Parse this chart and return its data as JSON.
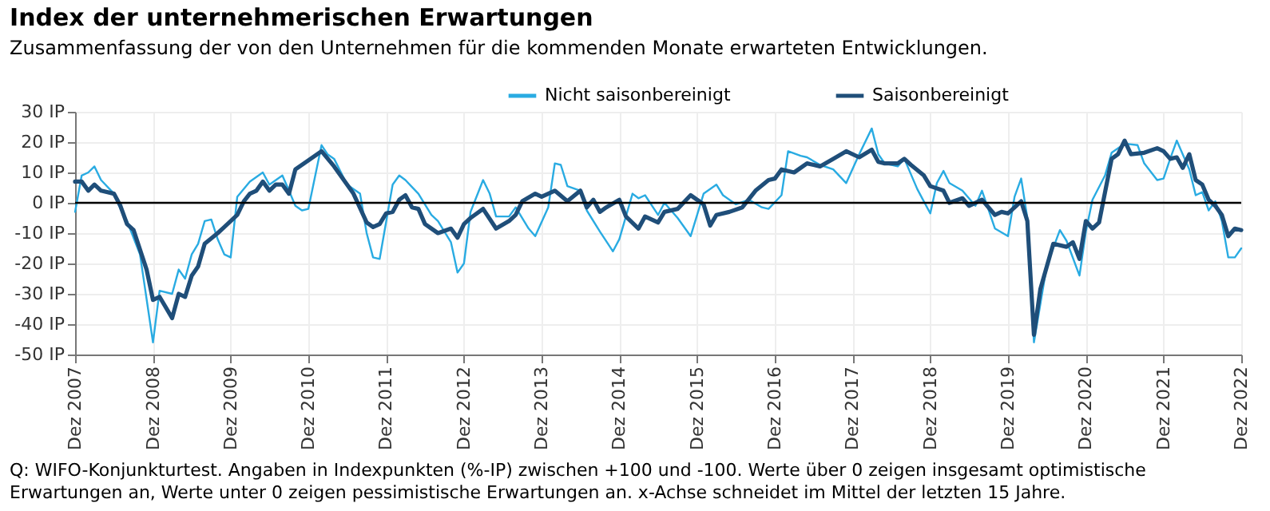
{
  "chart_data": {
    "type": "line",
    "title": "Index der unternehmerischen Erwartungen",
    "subtitle": "Zusammenfassung der von den Unternehmen für die kommenden Monate erwarteten Entwicklungen.",
    "annotations": [
      "Q: WIFO-Konjunkturtest. Angaben in Indexpunkten (%-IP) zwischen +100 und -100. Werte über 0 zeigen insgesamt optimistische Erwartungen an, Werte unter 0 zeigen pessimistische Erwartungen an. x-Achse schneidet im Mittel der letzten 15 Jahre."
    ],
    "xlim": [
      "2007-12",
      "2022-12"
    ],
    "xticks": [
      {
        "value": "2007-12",
        "label": "Dez 2007"
      },
      {
        "value": "2008-12",
        "label": "Dez 2008"
      },
      {
        "value": "2009-12",
        "label": "Dez 2009"
      },
      {
        "value": "2010-12",
        "label": "Dez 2010"
      },
      {
        "value": "2011-12",
        "label": "Dez 2011"
      },
      {
        "value": "2012-12",
        "label": "Dez 2012"
      },
      {
        "value": "2013-12",
        "label": "Dez 2013"
      },
      {
        "value": "2014-12",
        "label": "Dez 2014"
      },
      {
        "value": "2015-12",
        "label": "Dez 2015"
      },
      {
        "value": "2016-12",
        "label": "Dez 2016"
      },
      {
        "value": "2017-12",
        "label": "Dez 2017"
      },
      {
        "value": "2018-12",
        "label": "Dez 2018"
      },
      {
        "value": "2019-12",
        "label": "Dez 2019"
      },
      {
        "value": "2020-12",
        "label": "Dez 2020"
      },
      {
        "value": "2021-12",
        "label": "Dez 2021"
      },
      {
        "value": "2022-12",
        "label": "Dez 2022"
      }
    ],
    "ylim": [
      -50,
      30
    ],
    "yticks": [
      {
        "value": 30,
        "label": "30 IP"
      },
      {
        "value": 20,
        "label": "20 IP"
      },
      {
        "value": 10,
        "label": "10 IP"
      },
      {
        "value": 0,
        "label": "0 IP"
      },
      {
        "value": -10,
        "label": "-10 IP"
      },
      {
        "value": -20,
        "label": "-20 IP"
      },
      {
        "value": -30,
        "label": "-30 IP"
      },
      {
        "value": -40,
        "label": "-40 IP"
      },
      {
        "value": -50,
        "label": "-50 IP"
      }
    ],
    "grid": true,
    "legend": "top",
    "ref_lines": [
      {
        "axis": "y",
        "value": 0,
        "color": "#000000"
      }
    ],
    "series": [
      {
        "name": "Nicht saisonbereinigt",
        "color": "#29abe2",
        "x": [
          "2007-12",
          "2008-01",
          "2008-02",
          "2008-03",
          "2008-04",
          "2008-06",
          "2008-07",
          "2008-08",
          "2008-10",
          "2008-12",
          "2009-01",
          "2009-03",
          "2009-04",
          "2009-05",
          "2009-06",
          "2009-07",
          "2009-08",
          "2009-09",
          "2009-10",
          "2009-11",
          "2009-12",
          "2010-01",
          "2010-03",
          "2010-05",
          "2010-06",
          "2010-08",
          "2010-09",
          "2010-10",
          "2010-11",
          "2010-12",
          "2011-02",
          "2011-03",
          "2011-04",
          "2011-06",
          "2011-08",
          "2011-09",
          "2011-10",
          "2011-11",
          "2012-01",
          "2012-02",
          "2012-03",
          "2012-05",
          "2012-07",
          "2012-08",
          "2012-10",
          "2012-11",
          "2012-12",
          "2013-01",
          "2013-03",
          "2013-04",
          "2013-05",
          "2013-07",
          "2013-08",
          "2013-10",
          "2013-11",
          "2014-01",
          "2014-02",
          "2014-03",
          "2014-04",
          "2014-06",
          "2014-07",
          "2014-09",
          "2014-11",
          "2014-12",
          "2015-02",
          "2015-03",
          "2015-04",
          "2015-06",
          "2015-07",
          "2015-09",
          "2015-11",
          "2016-01",
          "2016-03",
          "2016-04",
          "2016-06",
          "2016-08",
          "2016-10",
          "2016-11",
          "2017-01",
          "2017-02",
          "2017-04",
          "2017-05",
          "2017-07",
          "2017-09",
          "2017-11",
          "2018-01",
          "2018-03",
          "2018-04",
          "2018-05",
          "2018-07",
          "2018-08",
          "2018-10",
          "2018-12",
          "2019-01",
          "2019-02",
          "2019-03",
          "2019-05",
          "2019-07",
          "2019-08",
          "2019-10",
          "2019-12",
          "2020-01",
          "2020-02",
          "2020-03",
          "2020-04",
          "2020-06",
          "2020-08",
          "2020-09",
          "2020-11",
          "2020-12",
          "2021-01",
          "2021-03",
          "2021-04",
          "2021-06",
          "2021-08",
          "2021-09",
          "2021-11",
          "2021-12",
          "2022-01",
          "2022-02",
          "2022-04",
          "2022-05",
          "2022-06",
          "2022-07",
          "2022-08",
          "2022-09",
          "2022-10",
          "2022-11",
          "2022-12"
        ],
        "values": [
          -3,
          9,
          10,
          12,
          7.5,
          3,
          -2,
          -6,
          -17,
          -46,
          -29,
          -30,
          -22,
          -25,
          -17,
          -13.5,
          -6,
          -5.5,
          -12,
          -17,
          -18,
          2,
          7,
          10,
          6,
          9,
          4,
          -1,
          -2.5,
          -2,
          19,
          16,
          14.5,
          6,
          3,
          -10,
          -18,
          -18.5,
          6,
          9,
          7.5,
          3,
          -4,
          -6,
          -13,
          -23,
          -20,
          -3,
          7.5,
          3,
          -4.5,
          -4.5,
          -1.5,
          -8.5,
          -11,
          -1.5,
          13,
          12.5,
          5.5,
          4,
          -2.5,
          -9.5,
          -16,
          -12,
          3,
          1.5,
          2.5,
          -4,
          0,
          -5,
          -11,
          3,
          6,
          2.5,
          -0.5,
          1,
          -1.5,
          -2,
          2.5,
          17,
          15.5,
          15,
          12.5,
          11,
          6.5,
          16,
          24.5,
          16,
          13,
          12,
          14.5,
          4.5,
          -3.5,
          6.5,
          10.5,
          6.5,
          4,
          -1,
          4,
          -8.5,
          -11,
          2,
          8,
          -5,
          -46,
          -20.5,
          -9,
          -12.5,
          -24,
          -9.5,
          1,
          9,
          16.5,
          19.5,
          19,
          13,
          7.5,
          8,
          14.5,
          20.5,
          11,
          2.5,
          3.5,
          -2.5,
          0.5,
          -6,
          -18,
          -18,
          -15
        ]
      },
      {
        "name": "Saisonbereinigt",
        "color": "#1f4e79",
        "x": [
          "2007-12",
          "2008-01",
          "2008-02",
          "2008-03",
          "2008-04",
          "2008-06",
          "2008-07",
          "2008-08",
          "2008-09",
          "2008-11",
          "2008-12",
          "2009-01",
          "2009-03",
          "2009-04",
          "2009-05",
          "2009-06",
          "2009-07",
          "2009-08",
          "2009-10",
          "2009-11",
          "2010-01",
          "2010-02",
          "2010-03",
          "2010-04",
          "2010-05",
          "2010-06",
          "2010-07",
          "2010-08",
          "2010-09",
          "2010-10",
          "2010-12",
          "2011-02",
          "2011-04",
          "2011-06",
          "2011-07",
          "2011-09",
          "2011-10",
          "2011-11",
          "2011-12",
          "2012-01",
          "2012-02",
          "2012-03",
          "2012-04",
          "2012-05",
          "2012-06",
          "2012-08",
          "2012-10",
          "2012-11",
          "2012-12",
          "2013-01",
          "2013-03",
          "2013-05",
          "2013-07",
          "2013-08",
          "2013-09",
          "2013-11",
          "2013-12",
          "2014-02",
          "2014-04",
          "2014-06",
          "2014-07",
          "2014-08",
          "2014-09",
          "2014-10",
          "2014-12",
          "2015-01",
          "2015-03",
          "2015-04",
          "2015-06",
          "2015-07",
          "2015-09",
          "2015-11",
          "2016-01",
          "2016-02",
          "2016-03",
          "2016-05",
          "2016-07",
          "2016-09",
          "2016-11",
          "2016-12",
          "2017-01",
          "2017-03",
          "2017-05",
          "2017-07",
          "2017-09",
          "2017-11",
          "2018-01",
          "2018-03",
          "2018-04",
          "2018-05",
          "2018-07",
          "2018-08",
          "2018-09",
          "2018-11",
          "2018-12",
          "2019-02",
          "2019-03",
          "2019-05",
          "2019-06",
          "2019-08",
          "2019-10",
          "2019-11",
          "2019-12",
          "2020-02",
          "2020-03",
          "2020-04",
          "2020-05",
          "2020-07",
          "2020-09",
          "2020-10",
          "2020-11",
          "2020-12",
          "2021-01",
          "2021-02",
          "2021-04",
          "2021-05",
          "2021-06",
          "2021-07",
          "2021-09",
          "2021-11",
          "2021-12",
          "2022-01",
          "2022-02",
          "2022-03",
          "2022-04",
          "2022-05",
          "2022-06",
          "2022-07",
          "2022-08",
          "2022-09",
          "2022-10",
          "2022-11",
          "2022-12"
        ],
        "values": [
          7,
          7,
          4,
          6,
          4,
          3,
          -1,
          -7,
          -9,
          -22,
          -32,
          -31,
          -38,
          -30,
          -31,
          -24,
          -21,
          -13.5,
          -10,
          -8,
          -4,
          0.5,
          3,
          4,
          7,
          4,
          6,
          6,
          3,
          11,
          14,
          17,
          12,
          6,
          3,
          -6.5,
          -8,
          -7,
          -3.5,
          -3,
          1,
          2.5,
          -1.5,
          -2,
          -7,
          -10,
          -8.5,
          -11.5,
          -7,
          -5,
          -2,
          -8.5,
          -6,
          -4,
          0.5,
          3,
          2,
          4,
          0.5,
          4,
          -1.5,
          1,
          -3,
          -1.5,
          1,
          -4.5,
          -8.5,
          -4.5,
          -6.5,
          -3,
          -2,
          2.5,
          -0.5,
          -7.5,
          -4,
          -3,
          -1.5,
          4,
          7.5,
          8,
          11,
          10,
          13,
          12,
          14.5,
          17,
          15,
          17.5,
          13.5,
          13,
          13,
          14.5,
          12.5,
          9,
          5.5,
          4,
          0,
          1.5,
          -1,
          1,
          -4,
          -3,
          -3.5,
          0.5,
          -6,
          -43.5,
          -28.5,
          -13.5,
          -14.5,
          -13,
          -18.5,
          -6,
          -8.5,
          -6.5,
          14.5,
          16,
          20.5,
          16,
          16.5,
          18,
          17,
          14.5,
          15,
          11.5,
          16,
          7.5,
          6,
          1,
          -1,
          -4,
          -11,
          -8.5,
          -9
        ]
      }
    ]
  }
}
